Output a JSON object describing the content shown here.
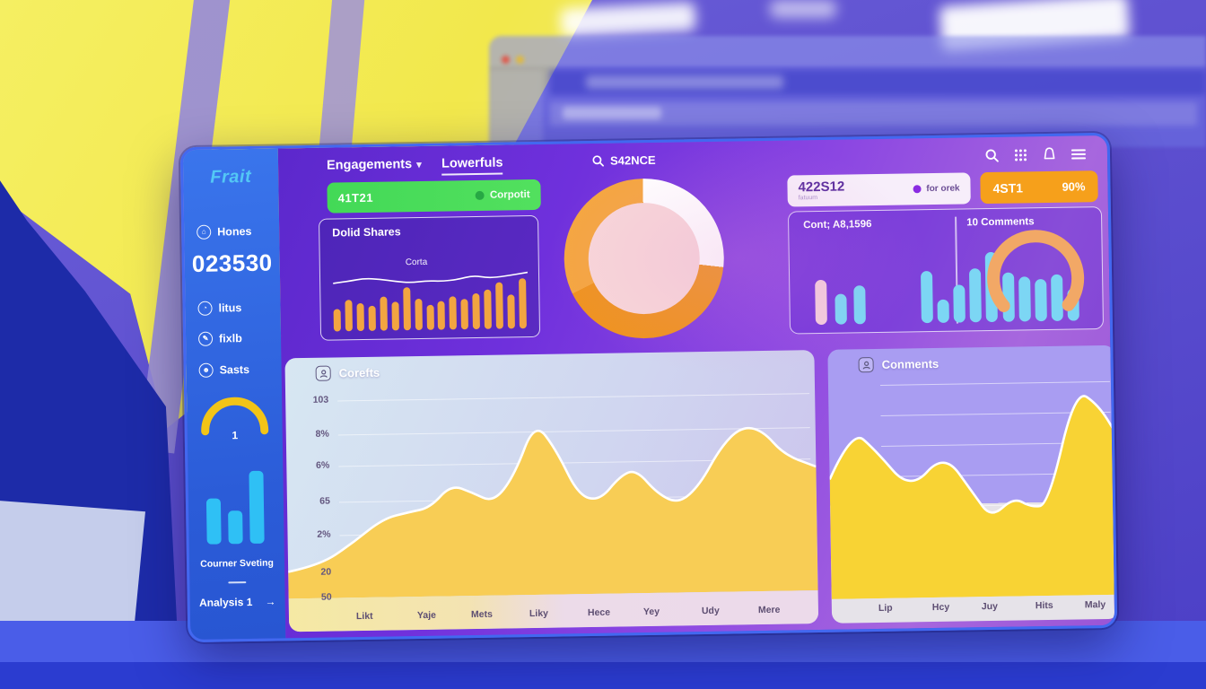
{
  "colors": {
    "accent_green": "#46d957",
    "accent_orange": "#f6a01b",
    "accent_cyan": "#7cd6f4",
    "accent_yellow": "#f2c417",
    "sidebar_blue": "#2d63e2",
    "main_purple": "#7a3ae0"
  },
  "sidebar": {
    "logo": "Frait",
    "stat": {
      "label": "Hones",
      "value": "023530"
    },
    "items": [
      {
        "label": "litus"
      },
      {
        "label": "fixlb"
      },
      {
        "label": "Sasts"
      }
    ],
    "gauge_value": "1",
    "caption": "Courner Sveting",
    "footer": {
      "label": "Analysis 1",
      "arrow": "→"
    }
  },
  "topbar": {
    "tab_primary": "Engagements",
    "caret": "▾",
    "tab_secondary": "Lowerfuls",
    "search_value": "S42NCE"
  },
  "badges": {
    "green": {
      "code": "41T21",
      "status": "Corpotit"
    },
    "metric": {
      "value": "422S12",
      "sub": "fatuum",
      "legend": "for orek"
    },
    "orange": {
      "code": "4ST1",
      "percent": "90%"
    }
  },
  "cards": {
    "dolid": {
      "title": "Dolid Shares",
      "line_label": "Corta"
    },
    "middle": {
      "left_title": "Cont; A8,1596",
      "right_title": "10 Comments"
    },
    "corefts": {
      "title": "Corefts"
    },
    "conments": {
      "title": "Conments"
    }
  },
  "chart_data": [
    {
      "id": "dolid_shares",
      "type": "bar",
      "title": "Dolid Shares",
      "line_label": "Corta",
      "bar_values": [
        45,
        62,
        55,
        50,
        68,
        58,
        85,
        62,
        50,
        57,
        66,
        60,
        72,
        78,
        92,
        68,
        100
      ],
      "line_points": [
        [
          0,
          52
        ],
        [
          8,
          60
        ],
        [
          16,
          70
        ],
        [
          24,
          66
        ],
        [
          32,
          56
        ],
        [
          40,
          50
        ],
        [
          48,
          57
        ],
        [
          56,
          54
        ],
        [
          64,
          60
        ],
        [
          72,
          75
        ],
        [
          80,
          64
        ],
        [
          88,
          70
        ],
        [
          100,
          84
        ]
      ],
      "bar_color": "#f2a541",
      "stroke": "#ffffff"
    },
    {
      "id": "engagement_donut",
      "type": "pie",
      "slices": [
        {
          "label": "segment-white",
          "value": 27,
          "color": "#ffffff"
        },
        {
          "label": "segment-orange-dark",
          "value": 41,
          "color": "#ef9320"
        },
        {
          "label": "segment-orange-light",
          "value": 32,
          "color": "#f5a640"
        }
      ],
      "center_color": "#f8d7d9"
    },
    {
      "id": "cont_bars",
      "type": "bar",
      "values": [
        52,
        35,
        45
      ],
      "colors": [
        "#f3cddd",
        "#7cd6f4",
        "#7cd6f4"
      ]
    },
    {
      "id": "comments_bars",
      "type": "bar",
      "values": [
        58,
        26,
        42,
        60,
        78,
        55,
        50,
        47,
        52,
        36
      ],
      "bar_color": "#7cd6f4",
      "overlay": "orange-arc"
    },
    {
      "id": "corefts_area",
      "type": "area",
      "title": "Corefts",
      "y_labels": [
        "103",
        "8%",
        "6%",
        "65",
        "2%",
        "20",
        "50"
      ],
      "x_labels": [
        "Likt",
        "Yaje",
        "Mets",
        "Liky",
        "Hece",
        "Yey",
        "Udy",
        "Mere"
      ],
      "points": [
        [
          0,
          13
        ],
        [
          6,
          16
        ],
        [
          12,
          26
        ],
        [
          18,
          38
        ],
        [
          23,
          41
        ],
        [
          27,
          43
        ],
        [
          31,
          54
        ],
        [
          35,
          50
        ],
        [
          39,
          45
        ],
        [
          43,
          58
        ],
        [
          47,
          84
        ],
        [
          51,
          70
        ],
        [
          55,
          48
        ],
        [
          59,
          45
        ],
        [
          63,
          57
        ],
        [
          66,
          60
        ],
        [
          70,
          48
        ],
        [
          74,
          43
        ],
        [
          78,
          52
        ],
        [
          82,
          70
        ],
        [
          86,
          80
        ],
        [
          90,
          78
        ],
        [
          94,
          66
        ],
        [
          100,
          60
        ]
      ],
      "fill": "#f8cd55",
      "stroke": "#ffffff"
    },
    {
      "id": "conments_area",
      "type": "area",
      "title": "Conments",
      "x_labels": [
        "Lip",
        "Hcy",
        "Juy",
        "Hits",
        "Maly"
      ],
      "points": [
        [
          0,
          58
        ],
        [
          8,
          82
        ],
        [
          16,
          72
        ],
        [
          28,
          52
        ],
        [
          40,
          70
        ],
        [
          50,
          50
        ],
        [
          56,
          38
        ],
        [
          64,
          48
        ],
        [
          70,
          43
        ],
        [
          76,
          44
        ],
        [
          86,
          100
        ],
        [
          94,
          92
        ],
        [
          100,
          78
        ]
      ],
      "fill": "#f8d334",
      "stroke": "#ffffff"
    },
    {
      "id": "sidebar_bars",
      "type": "bar",
      "values": [
        55,
        40,
        88
      ],
      "bar_color": "#2fc0f5"
    }
  ]
}
